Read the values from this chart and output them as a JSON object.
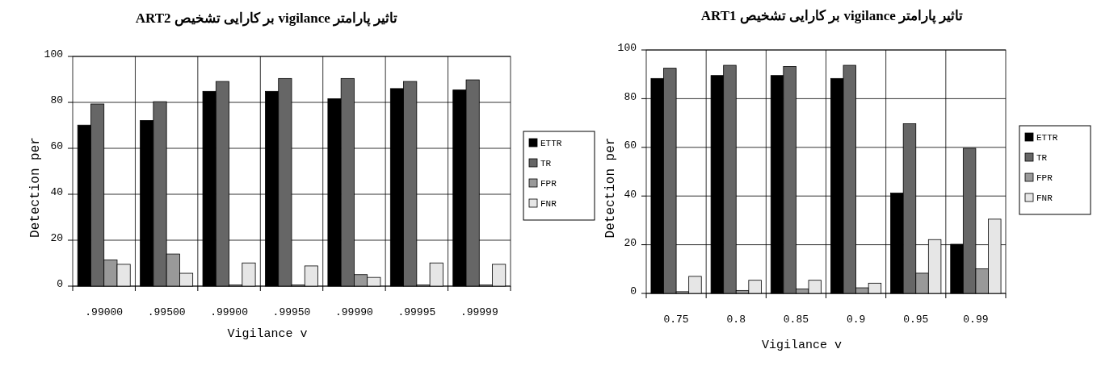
{
  "chart_data": [
    {
      "type": "bar",
      "title": "تاثیر پارامتر vigilance بر کارایی تشخیص ART2",
      "xlabel": "Vigilance v",
      "ylabel": "Detection per",
      "categories": [
        ".99000",
        ".99500",
        ".99900",
        ".99950",
        ".99990",
        ".99995",
        ".99999"
      ],
      "ylim": [
        0,
        100
      ],
      "yticks": [
        0,
        20,
        40,
        60,
        80,
        100
      ],
      "grid": true,
      "legend": "right",
      "series": [
        {
          "name": "ETTR",
          "color": "#000000",
          "values": [
            70.1,
            72.1,
            84.8,
            84.8,
            81.6,
            86,
            85.4
          ]
        },
        {
          "name": "TR",
          "color": "#666666",
          "values": [
            79.3,
            80.3,
            89.1,
            90.4,
            90.4,
            89.1,
            89.8
          ]
        },
        {
          "name": "FPR",
          "color": "#999999",
          "values": [
            11.4,
            14,
            0.5,
            0.5,
            5,
            0.5,
            0.5
          ]
        },
        {
          "name": "FNR",
          "color": "#e6e6e6",
          "values": [
            9.5,
            5.6,
            10.1,
            8.8,
            3.8,
            10.1,
            9.5
          ]
        }
      ]
    },
    {
      "type": "bar",
      "title": "تاثیر پارامتر vigilance بر کارایی تشخیص ART1",
      "xlabel": "Vigilance v",
      "ylabel": "Detection per",
      "categories": [
        "0.75",
        "0.8",
        "0.85",
        "0.9",
        "0.95",
        "0.99"
      ],
      "ylim": [
        0,
        100
      ],
      "yticks": [
        0,
        20,
        40,
        60,
        80,
        100
      ],
      "grid": true,
      "legend": "right",
      "series": [
        {
          "name": "ETTR",
          "color": "#000000",
          "values": [
            88.3,
            89.5,
            89.5,
            88.3,
            41.2,
            20.2
          ]
        },
        {
          "name": "TR",
          "color": "#666666",
          "values": [
            92.5,
            93.7,
            93.2,
            93.7,
            69.7,
            59.6
          ]
        },
        {
          "name": "FPR",
          "color": "#999999",
          "values": [
            0.7,
            1.2,
            1.8,
            2.3,
            8.3,
            10.1
          ]
        },
        {
          "name": "FNR",
          "color": "#e6e6e6",
          "values": [
            7,
            5.4,
            5.4,
            4.2,
            22.1,
            30.5
          ]
        }
      ]
    }
  ]
}
